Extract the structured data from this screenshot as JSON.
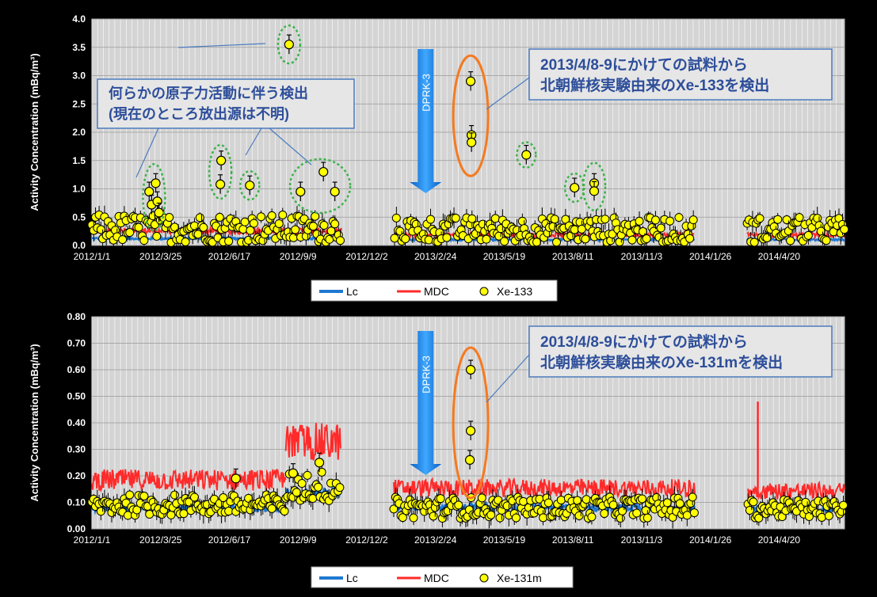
{
  "chart_data": [
    {
      "type": "scatter",
      "ylabel": "Activity Concentration (mBq/m³)",
      "ylim": [
        0,
        4.0
      ],
      "yticks": [
        "0.0",
        "0.5",
        "1.0",
        "1.5",
        "2.0",
        "2.5",
        "3.0",
        "3.5",
        "4.0"
      ],
      "xlim": [
        "2012-01-01",
        "2014-07-09"
      ],
      "xticks": [
        "2012/1/1",
        "2012/3/25",
        "2012/6/17",
        "2012/9/9",
        "2012/12/2",
        "2013/2/24",
        "2013/5/19",
        "2013/8/11",
        "2013/11/3",
        "2014/1/26",
        "2014/4/20"
      ],
      "legend": [
        "Lc",
        "MDC",
        "Xe-133"
      ],
      "legend_position": "bottom",
      "colors": {
        "Lc": "#1f78d1",
        "MDC": "#ff2a2a",
        "points": "#ffff00",
        "background": "#d4d4d4"
      },
      "grid": true,
      "annotations": {
        "detection_box": "2013/4/8-9にかけての試料から\n北朝鮮核実験由来のXe-133を検出",
        "unknown_box": "何らかの原子力活動に伴う検出\n(現在のところ放出源は不明)",
        "arrow_label": "DPRK-3"
      },
      "highlighted_points": [
        {
          "x": "2012-03-11",
          "y": 0.95
        },
        {
          "x": "2012-03-14",
          "y": 0.72
        },
        {
          "x": "2012-03-19",
          "y": 1.1
        },
        {
          "x": "2012-03-21",
          "y": 0.78
        },
        {
          "x": "2012-03-23",
          "y": 0.58
        },
        {
          "x": "2012-06-07",
          "y": 1.5
        },
        {
          "x": "2012-06-06",
          "y": 1.08
        },
        {
          "x": "2012-07-12",
          "y": 1.06
        },
        {
          "x": "2012-08-29",
          "y": 3.55
        },
        {
          "x": "2012-09-12",
          "y": 0.95
        },
        {
          "x": "2012-10-10",
          "y": 1.3
        },
        {
          "x": "2012-10-24",
          "y": 0.95
        },
        {
          "x": "2013-04-08",
          "y": 2.9
        },
        {
          "x": "2013-04-09",
          "y": 1.95
        },
        {
          "x": "2013-04-09",
          "y": 1.82
        },
        {
          "x": "2013-06-15",
          "y": 1.6
        },
        {
          "x": "2013-08-13",
          "y": 1.02
        },
        {
          "x": "2013-09-06",
          "y": 1.1
        },
        {
          "x": "2013-09-06",
          "y": 0.96
        }
      ],
      "series_segments": [
        {
          "x_start": "2012-01-01",
          "x_end": "2012-11-01",
          "Lc_level": 0.12,
          "MDC_level": 0.25,
          "point_range": [
            0.05,
            0.55
          ]
        },
        {
          "x_start": "2013-01-05",
          "x_end": "2014-01-06",
          "Lc_level": 0.1,
          "MDC_level": 0.18,
          "point_range": [
            0.05,
            0.5
          ]
        },
        {
          "x_start": "2014-03-12",
          "x_end": "2014-07-09",
          "Lc_level": 0.1,
          "MDC_level": 0.18,
          "point_range": [
            0.05,
            0.5
          ]
        }
      ]
    },
    {
      "type": "scatter",
      "ylabel": "Activity Concentration (mBq/m³)",
      "ylim": [
        0,
        0.8
      ],
      "yticks": [
        "0.00",
        "0.10",
        "0.20",
        "0.30",
        "0.40",
        "0.50",
        "0.60",
        "0.70",
        "0.80"
      ],
      "xlim": [
        "2012-01-01",
        "2014-07-09"
      ],
      "xticks": [
        "2012/1/1",
        "2012/3/25",
        "2012/6/17",
        "2012/9/9",
        "2012/12/2",
        "2013/2/24",
        "2013/5/19",
        "2013/8/11",
        "2013/11/3",
        "2014/1/26",
        "2014/4/20"
      ],
      "legend": [
        "Lc",
        "MDC",
        "Xe-131m"
      ],
      "legend_position": "bottom",
      "colors": {
        "Lc": "#1f78d1",
        "MDC": "#ff2a2a",
        "points": "#ffff00",
        "background": "#d4d4d4"
      },
      "grid": true,
      "annotations": {
        "detection_box": "2013/4/8-9にかけての試料から\n北朝鮮核実験由来のXe-131mを検出",
        "arrow_label": "DPRK-3"
      },
      "highlighted_points": [
        {
          "x": "2013-04-08",
          "y": 0.6
        },
        {
          "x": "2013-04-08",
          "y": 0.37
        },
        {
          "x": "2013-04-07",
          "y": 0.26
        },
        {
          "x": "2012-06-25",
          "y": 0.19
        },
        {
          "x": "2012-09-03",
          "y": 0.21
        },
        {
          "x": "2012-10-05",
          "y": 0.25
        }
      ],
      "series_segments": [
        {
          "x_start": "2012-01-01",
          "x_end": "2012-08-25",
          "Lc_level": 0.075,
          "MDC_level": 0.18,
          "point_range": [
            0.05,
            0.13
          ]
        },
        {
          "x_start": "2012-08-25",
          "x_end": "2012-10-31",
          "Lc_level": 0.13,
          "MDC_level": 0.32,
          "point_range": [
            0.1,
            0.22
          ]
        },
        {
          "x_start": "2013-01-04",
          "x_end": "2014-01-07",
          "Lc_level": 0.08,
          "MDC_level": 0.15,
          "point_range": [
            0.04,
            0.12
          ]
        },
        {
          "x_start": "2014-03-13",
          "x_end": "2014-07-09",
          "Lc_level": 0.07,
          "MDC_level": 0.14,
          "point_range": [
            0.04,
            0.11
          ]
        }
      ],
      "spikes": [
        {
          "x": "2014-03-25",
          "MDC": 0.48
        }
      ]
    }
  ]
}
